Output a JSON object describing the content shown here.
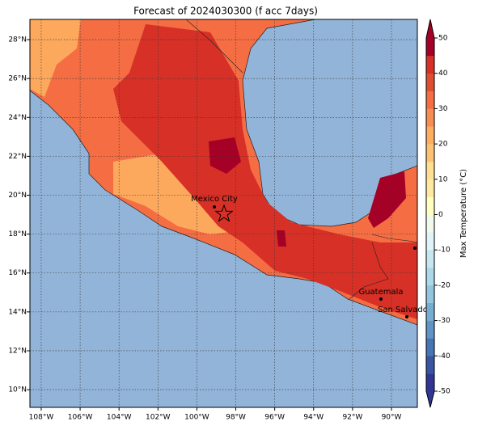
{
  "title": "Forecast of 2024030300 (f acc 7days)",
  "map": {
    "xlim": [
      -108.58,
      -88.67
    ],
    "ylim": [
      9.09,
      29.04
    ],
    "xticks": [
      {
        "value": -108,
        "label": "108°W"
      },
      {
        "value": -106,
        "label": "106°W"
      },
      {
        "value": -104,
        "label": "104°W"
      },
      {
        "value": -102,
        "label": "102°W"
      },
      {
        "value": -100,
        "label": "100°W"
      },
      {
        "value": -98,
        "label": "98°W"
      },
      {
        "value": -96,
        "label": "96°W"
      },
      {
        "value": -94,
        "label": "94°W"
      },
      {
        "value": -92,
        "label": "92°W"
      },
      {
        "value": -90,
        "label": "90°W"
      }
    ],
    "yticks": [
      {
        "value": 10,
        "label": "10°N"
      },
      {
        "value": 12,
        "label": "12°N"
      },
      {
        "value": 14,
        "label": "14°N"
      },
      {
        "value": 16,
        "label": "16°N"
      },
      {
        "value": 18,
        "label": "18°N"
      },
      {
        "value": 20,
        "label": "20°N"
      },
      {
        "value": 22,
        "label": "22°N"
      },
      {
        "value": 24,
        "label": "24°N"
      },
      {
        "value": 26,
        "label": "26°N"
      },
      {
        "value": 28,
        "label": "28°N"
      }
    ],
    "grid": true,
    "cities": [
      {
        "name": "Mexico City"
      },
      {
        "name": "Guatemala"
      },
      {
        "name": "San Salvador"
      }
    ]
  },
  "colorbar": {
    "label": "Max Temperature (°C)",
    "lim": [
      -50,
      50
    ],
    "ticks": [
      -50,
      -40,
      -30,
      -20,
      -10,
      0,
      10,
      20,
      30,
      40,
      50
    ],
    "colors": [
      "#313695",
      "#3a54a4",
      "#4575b4",
      "#5f94c6",
      "#74add1",
      "#92c5de",
      "#abd9e9",
      "#c6e6f0",
      "#e0f3f8",
      "#f0f9ea",
      "#ffffbf",
      "#fee9a0",
      "#fee090",
      "#fdc173",
      "#fdae61",
      "#f88d52",
      "#f46d43",
      "#e04e32",
      "#d73027",
      "#a50026"
    ]
  }
}
